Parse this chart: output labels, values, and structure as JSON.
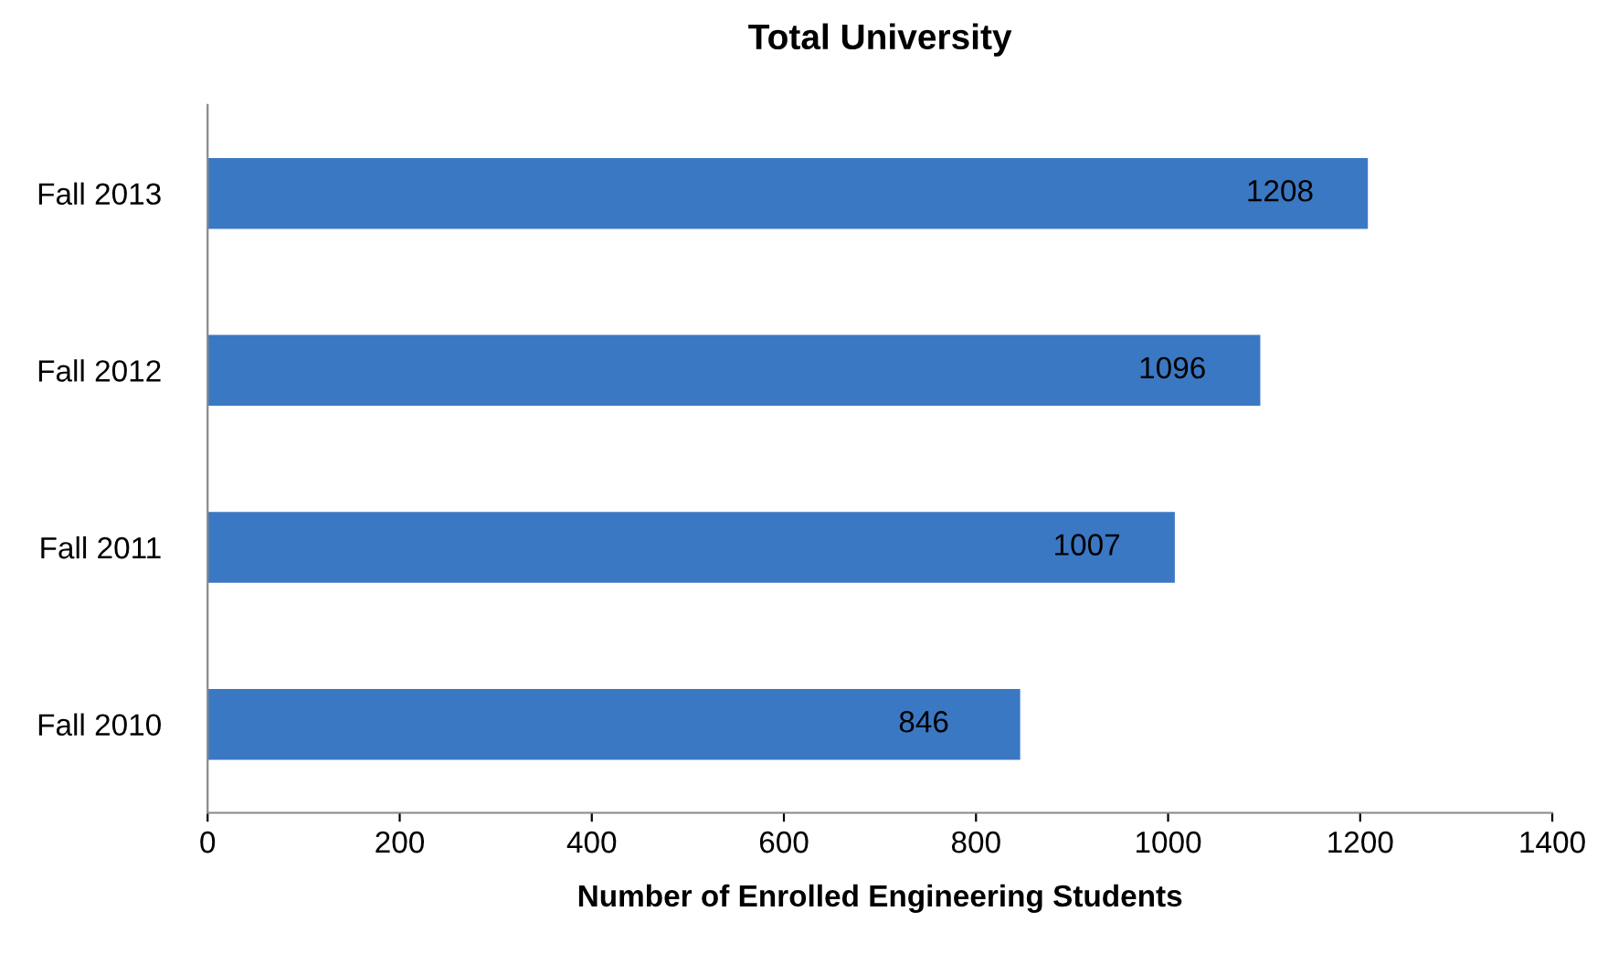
{
  "chart_data": {
    "type": "bar",
    "orientation": "horizontal",
    "title": "Total University",
    "xlabel": "Number of Enrolled Engineering Students",
    "categories": [
      "Fall 2013",
      "Fall 2012",
      "Fall 2011",
      "Fall 2010"
    ],
    "values": [
      1208,
      1096,
      1007,
      846
    ],
    "color": "#3b78c3",
    "xlim": [
      0,
      1400
    ],
    "xticks": [
      0,
      200,
      400,
      600,
      800,
      1000,
      1200,
      1400
    ],
    "data_labels": true,
    "grid": false,
    "legend": false
  }
}
